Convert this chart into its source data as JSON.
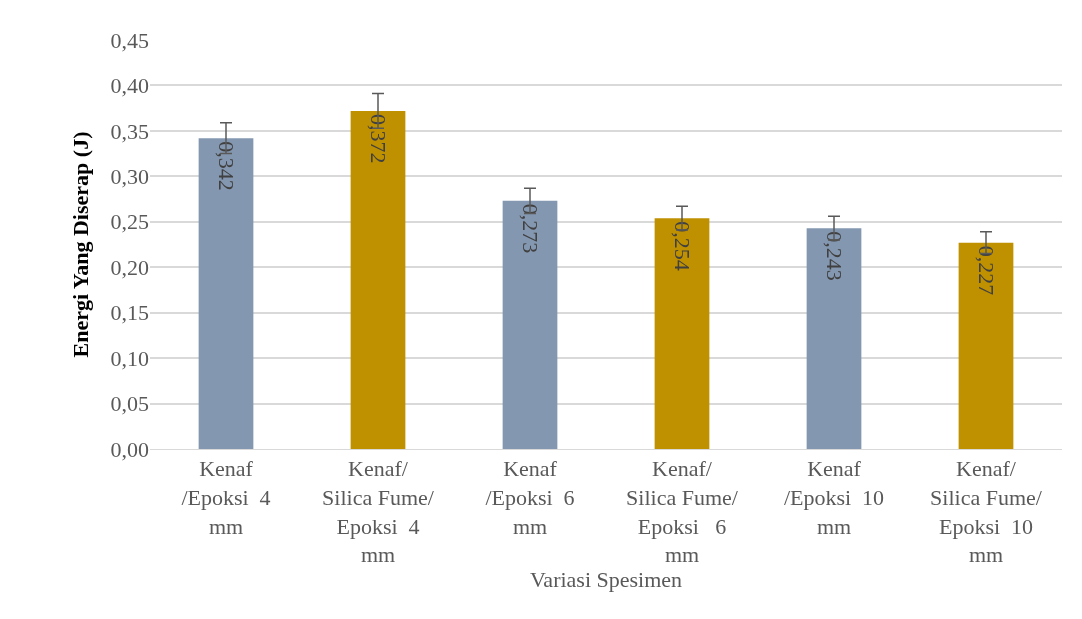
{
  "chart_data": {
    "type": "bar",
    "xlabel": "Variasi Spesimen",
    "ylabel": "Energi Yang Diserap (J)",
    "categories": [
      "Kenaf\n/Epoksi  4\nmm",
      "Kenaf/\nSilica Fume/\nEpoksi  4\nmm",
      "Kenaf\n/Epoksi  6\nmm",
      "Kenaf/\nSilica Fume/\nEpoksi   6\nmm",
      "Kenaf\n/Epoksi  10\nmm",
      "Kenaf/\nSilica Fume/\nEpoksi  10\nmm"
    ],
    "values": [
      0.342,
      0.372,
      0.273,
      0.254,
      0.243,
      0.227
    ],
    "colors": [
      "#8497b0",
      "#bf9000",
      "#8497b0",
      "#bf9000",
      "#8497b0",
      "#bf9000"
    ],
    "errors": [
      0.017,
      0.019,
      0.014,
      0.013,
      0.013,
      0.012
    ],
    "value_labels": [
      "0,342",
      "0,372",
      "0,273",
      "0,254",
      "0,243",
      "0,227"
    ],
    "ylim": [
      0,
      0.45
    ],
    "yticks": [
      {
        "value": 0,
        "label": "0,00"
      },
      {
        "value": 0.05,
        "label": "0,05"
      },
      {
        "value": 0.1,
        "label": "0,10"
      },
      {
        "value": 0.15,
        "label": "0,15"
      },
      {
        "value": 0.2,
        "label": "0,20"
      },
      {
        "value": 0.25,
        "label": "0,25"
      },
      {
        "value": 0.3,
        "label": "0,30"
      },
      {
        "value": 0.35,
        "label": "0,35"
      },
      {
        "value": 0.4,
        "label": "0,40"
      },
      {
        "value": 0.45,
        "label": "0,45"
      }
    ],
    "grid": "y",
    "legend": false
  }
}
